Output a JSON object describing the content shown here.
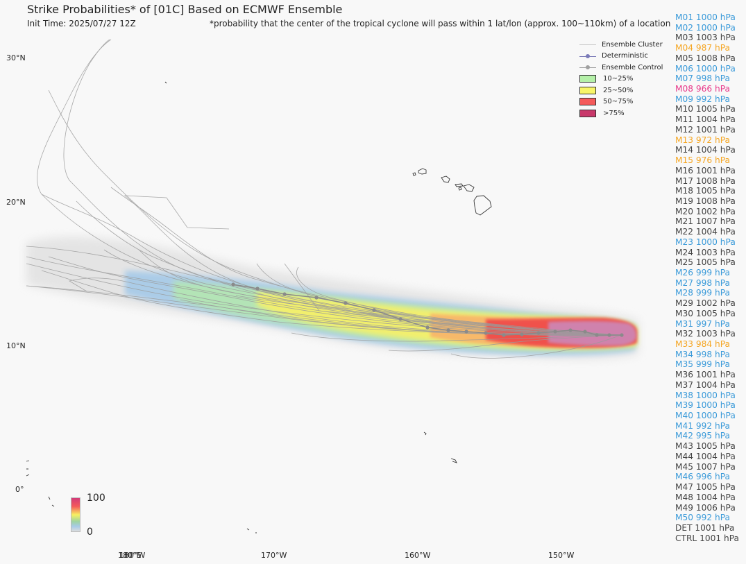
{
  "header": {
    "title": "Strike Probabilities* of [01C] Based on ECMWF Ensemble",
    "init_time": "Init Time: 2025/07/27 12Z",
    "note": "*probability that the center of the tropical cyclone will pass within 1 lat/lon (approx. 100~110km) of a location"
  },
  "map": {
    "lat_labels": [
      "30°N",
      "20°N",
      "10°N",
      "0°"
    ],
    "lon_labels": [
      "180°W",
      "170°W",
      "160°W",
      "150°W"
    ],
    "lon_label_overlap": "180°E"
  },
  "legend": {
    "items": [
      {
        "label": "Ensemble Cluster",
        "kind": "line",
        "color": "#c8c8c8"
      },
      {
        "label": "Deterministic",
        "kind": "line-dot",
        "color": "#7b7bb8"
      },
      {
        "label": "Ensemble Control",
        "kind": "line-dot",
        "color": "#a0a0a0"
      },
      {
        "label": "10~25%",
        "kind": "box",
        "color": "#b4f0a8"
      },
      {
        "label": "25~50%",
        "kind": "box",
        "color": "#f7f568"
      },
      {
        "label": "50~75%",
        "kind": "box",
        "color": "#f45a5a"
      },
      {
        "label": ">75%",
        "kind": "box",
        "color": "#c8386a"
      }
    ]
  },
  "colorbar": {
    "max": "100",
    "min": "0"
  },
  "members": [
    {
      "text": "M01 1000 hPa",
      "color": "#3a9ad9"
    },
    {
      "text": "M02 1000 hPa",
      "color": "#3a9ad9"
    },
    {
      "text": "M03 1003 hPa",
      "color": "#444444"
    },
    {
      "text": "M04 987 hPa",
      "color": "#f5a623"
    },
    {
      "text": "M05 1008 hPa",
      "color": "#444444"
    },
    {
      "text": "M06 1000 hPa",
      "color": "#3a9ad9"
    },
    {
      "text": "M07 998 hPa",
      "color": "#3a9ad9"
    },
    {
      "text": "M08 966 hPa",
      "color": "#e8388a"
    },
    {
      "text": "M09 992 hPa",
      "color": "#3a9ad9"
    },
    {
      "text": "M10 1005 hPa",
      "color": "#444444"
    },
    {
      "text": "M11 1004 hPa",
      "color": "#444444"
    },
    {
      "text": "M12 1001 hPa",
      "color": "#444444"
    },
    {
      "text": "M13 972 hPa",
      "color": "#f5a623"
    },
    {
      "text": "M14 1004 hPa",
      "color": "#444444"
    },
    {
      "text": "M15 976 hPa",
      "color": "#f5a623"
    },
    {
      "text": "M16 1001 hPa",
      "color": "#444444"
    },
    {
      "text": "M17 1008 hPa",
      "color": "#444444"
    },
    {
      "text": "M18 1005 hPa",
      "color": "#444444"
    },
    {
      "text": "M19 1008 hPa",
      "color": "#444444"
    },
    {
      "text": "M20 1002 hPa",
      "color": "#444444"
    },
    {
      "text": "M21 1007 hPa",
      "color": "#444444"
    },
    {
      "text": "M22 1004 hPa",
      "color": "#444444"
    },
    {
      "text": "M23 1000 hPa",
      "color": "#3a9ad9"
    },
    {
      "text": "M24 1003 hPa",
      "color": "#444444"
    },
    {
      "text": "M25 1005 hPa",
      "color": "#444444"
    },
    {
      "text": "M26 999 hPa",
      "color": "#3a9ad9"
    },
    {
      "text": "M27 998 hPa",
      "color": "#3a9ad9"
    },
    {
      "text": "M28 999 hPa",
      "color": "#3a9ad9"
    },
    {
      "text": "M29 1002 hPa",
      "color": "#444444"
    },
    {
      "text": "M30 1005 hPa",
      "color": "#444444"
    },
    {
      "text": "M31 997 hPa",
      "color": "#3a9ad9"
    },
    {
      "text": "M32 1003 hPa",
      "color": "#444444"
    },
    {
      "text": "M33 984 hPa",
      "color": "#f5a623"
    },
    {
      "text": "M34 998 hPa",
      "color": "#3a9ad9"
    },
    {
      "text": "M35 999 hPa",
      "color": "#3a9ad9"
    },
    {
      "text": "M36 1001 hPa",
      "color": "#444444"
    },
    {
      "text": "M37 1004 hPa",
      "color": "#444444"
    },
    {
      "text": "M38 1000 hPa",
      "color": "#3a9ad9"
    },
    {
      "text": "M39 1000 hPa",
      "color": "#3a9ad9"
    },
    {
      "text": "M40 1000 hPa",
      "color": "#3a9ad9"
    },
    {
      "text": "M41 992 hPa",
      "color": "#3a9ad9"
    },
    {
      "text": "M42 995 hPa",
      "color": "#3a9ad9"
    },
    {
      "text": "M43 1005 hPa",
      "color": "#444444"
    },
    {
      "text": "M44 1004 hPa",
      "color": "#444444"
    },
    {
      "text": "M45 1007 hPa",
      "color": "#444444"
    },
    {
      "text": "M46 996 hPa",
      "color": "#3a9ad9"
    },
    {
      "text": "M47 1005 hPa",
      "color": "#444444"
    },
    {
      "text": "M48 1004 hPa",
      "color": "#444444"
    },
    {
      "text": "M49 1006 hPa",
      "color": "#444444"
    },
    {
      "text": "M50 992 hPa",
      "color": "#3a9ad9"
    },
    {
      "text": "DET 1001 hPa",
      "color": "#444444"
    },
    {
      "text": "CTRL 1001 hPa",
      "color": "#444444"
    }
  ]
}
